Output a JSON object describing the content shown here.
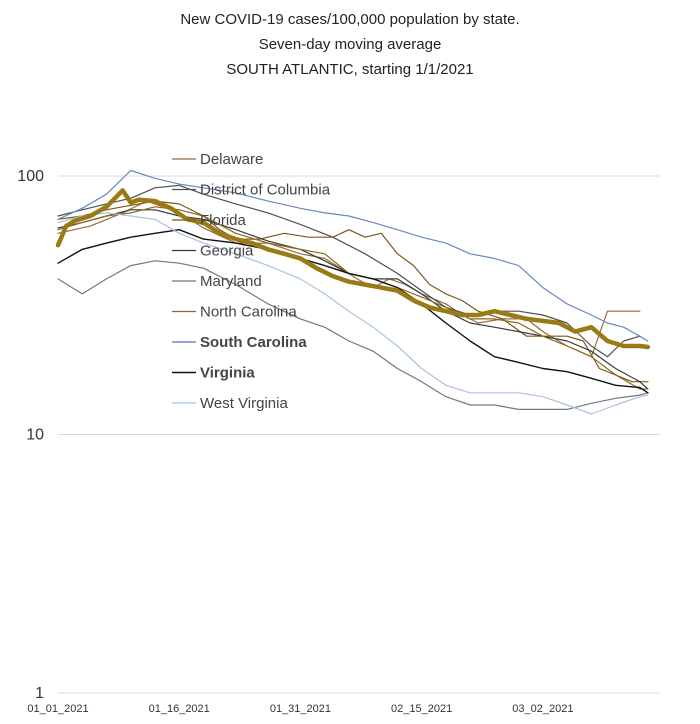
{
  "chart_data": {
    "type": "line",
    "title": [
      "New COVID-19 cases/100,000 population by state.",
      "Seven-day moving average",
      "SOUTH ATLANTIC, starting 1/1/2021"
    ],
    "xlabel": "",
    "ylabel": "",
    "yscale": "log",
    "ylim": [
      1,
      100
    ],
    "grid": true,
    "legend_position": "upper-left inside",
    "x_tick_labels": [
      "01_01_2021",
      "01_16_2021",
      "01_31_2021",
      "02_15_2021",
      "03_02_2021"
    ],
    "x_tick_days": [
      0,
      15,
      30,
      45,
      60
    ],
    "x_range_days": [
      0,
      74
    ],
    "y_tick_labels": [
      "1",
      "10",
      "100"
    ],
    "y_tick_values": [
      1,
      10,
      100
    ],
    "series": [
      {
        "name": "Delaware",
        "color": "#9b6b3c",
        "width": 1.2,
        "bold": false,
        "x": [
          0,
          4,
          8,
          11,
          15,
          18,
          22,
          26,
          30,
          33,
          35,
          37,
          39,
          41,
          43,
          45,
          48,
          50,
          52,
          55,
          58,
          60,
          63,
          66,
          68,
          70,
          72
        ],
        "y": [
          60,
          64,
          72,
          80,
          72,
          63,
          55,
          55,
          50,
          48,
          44,
          40,
          37,
          40,
          38,
          35,
          32,
          29,
          27,
          28,
          28,
          25,
          22,
          20,
          30,
          30,
          30
        ]
      },
      {
        "name": "District of Columbia",
        "color": "#505050",
        "width": 1.2,
        "bold": false,
        "x": [
          0,
          3,
          6,
          9,
          12,
          15,
          18,
          22,
          26,
          30,
          34,
          38,
          42,
          45,
          48,
          51,
          54,
          57,
          60,
          63,
          66,
          68,
          70,
          72
        ],
        "y": [
          70,
          74,
          78,
          82,
          90,
          92,
          85,
          78,
          72,
          65,
          58,
          50,
          42,
          36,
          31,
          29,
          30,
          30,
          29,
          27,
          22,
          20,
          23,
          24
        ]
      },
      {
        "name": "Florida",
        "color": "#7a5a1a",
        "width": 1.2,
        "bold": false,
        "x": [
          0,
          3,
          6,
          9,
          12,
          15,
          18,
          20,
          22,
          25,
          28,
          31,
          34,
          36,
          38,
          40,
          42,
          44,
          46,
          48,
          50,
          52,
          55,
          58,
          60,
          63,
          65,
          67,
          69,
          71,
          73
        ],
        "y": [
          68,
          70,
          74,
          77,
          80,
          78,
          70,
          62,
          57,
          57,
          60,
          58,
          58,
          62,
          58,
          60,
          50,
          45,
          38,
          35,
          33,
          30,
          28,
          24,
          24,
          24,
          23,
          18,
          17,
          16,
          16
        ]
      },
      {
        "name": "Georgia",
        "color": "#3a3a3a",
        "width": 1.2,
        "bold": false,
        "x": [
          0,
          3,
          6,
          9,
          12,
          15,
          18,
          22,
          26,
          30,
          33,
          36,
          39,
          42,
          45,
          48,
          51,
          54,
          57,
          60,
          63,
          66,
          69,
          72,
          73
        ],
        "y": [
          63,
          66,
          70,
          74,
          74,
          70,
          68,
          62,
          56,
          52,
          47,
          42,
          40,
          40,
          35,
          30,
          27,
          26,
          25,
          24,
          23,
          21,
          18,
          16,
          15
        ]
      },
      {
        "name": "Maryland",
        "color": "#777777",
        "width": 1.2,
        "bold": false,
        "x": [
          0,
          3,
          6,
          9,
          12,
          15,
          18,
          22,
          26,
          30,
          33,
          36,
          39,
          42,
          45,
          48,
          51,
          54,
          57,
          60,
          63,
          66,
          69,
          72,
          73
        ],
        "y": [
          40,
          35,
          40,
          45,
          47,
          46,
          44,
          38,
          32,
          28,
          26,
          23,
          21,
          18,
          16,
          14,
          13,
          13,
          12.5,
          12.5,
          12.5,
          13.2,
          13.8,
          14.2,
          14.5
        ]
      },
      {
        "name": "North Carolina",
        "color": "#8b6a1f",
        "width": 1.2,
        "bold": false,
        "x": [
          0,
          3,
          6,
          9,
          12,
          15,
          18,
          22,
          26,
          30,
          33,
          36,
          39,
          42,
          45,
          48,
          51,
          54,
          57,
          60,
          63,
          66,
          69,
          72,
          73
        ],
        "y": [
          62,
          66,
          70,
          72,
          76,
          74,
          70,
          60,
          55,
          52,
          50,
          42,
          40,
          37,
          34,
          31,
          28,
          28,
          27,
          24,
          22,
          20,
          17,
          15,
          15
        ]
      },
      {
        "name": "South Carolina",
        "color": "#6b87c6",
        "width": 1.2,
        "bold": true,
        "x": [
          0,
          3,
          6,
          9,
          12,
          15,
          18,
          22,
          26,
          30,
          33,
          36,
          39,
          42,
          45,
          48,
          51,
          54,
          57,
          60,
          63,
          66,
          68,
          70,
          72,
          73
        ],
        "y": [
          68,
          75,
          85,
          105,
          98,
          93,
          90,
          86,
          80,
          75,
          72,
          70,
          66,
          62,
          58,
          55,
          50,
          48,
          45,
          37,
          32,
          29,
          27,
          26,
          24,
          23
        ]
      },
      {
        "name": "Virginia",
        "color": "#111111",
        "width": 1.4,
        "bold": true,
        "x": [
          0,
          3,
          6,
          9,
          12,
          15,
          18,
          22,
          26,
          30,
          33,
          36,
          39,
          42,
          45,
          48,
          51,
          54,
          57,
          60,
          63,
          66,
          69,
          72,
          73
        ],
        "y": [
          46,
          52,
          55,
          58,
          60,
          62,
          57,
          55,
          52,
          48,
          45,
          42,
          40,
          37,
          32,
          27,
          23,
          20,
          19,
          18,
          17.5,
          16.5,
          15.5,
          15.2,
          14.5
        ]
      },
      {
        "name": "West Virginia",
        "color": "#a9c3e3",
        "width": 1.2,
        "bold": false,
        "x": [
          0,
          3,
          6,
          9,
          12,
          15,
          18,
          22,
          26,
          30,
          33,
          36,
          39,
          42,
          45,
          48,
          51,
          54,
          57,
          60,
          63,
          66,
          69,
          72,
          73
        ],
        "y": [
          66,
          70,
          72,
          70,
          68,
          60,
          55,
          50,
          45,
          40,
          35,
          30,
          26,
          22,
          18,
          15.5,
          14.5,
          14.5,
          14.5,
          14,
          13,
          12,
          13,
          14,
          14.2
        ]
      }
    ],
    "average": {
      "color": "#9a7a14",
      "width": 4.5,
      "x": [
        0,
        1,
        2,
        4,
        6,
        8,
        9,
        10,
        12,
        14,
        16,
        18,
        20,
        22,
        24,
        26,
        28,
        30,
        32,
        34,
        36,
        38,
        40,
        42,
        44,
        46,
        48,
        50,
        52,
        54,
        56,
        58,
        60,
        62,
        64,
        66,
        68,
        70,
        72,
        73
      ],
      "y": [
        54,
        64,
        67,
        70,
        76,
        88,
        79,
        81,
        80,
        75,
        68,
        66,
        60,
        57,
        55,
        52,
        50,
        48,
        44,
        41,
        39,
        38,
        37,
        36,
        33,
        31,
        30,
        29,
        29,
        30,
        29,
        28,
        27.5,
        27,
        25,
        26,
        23,
        22,
        22,
        21.8
      ]
    }
  }
}
